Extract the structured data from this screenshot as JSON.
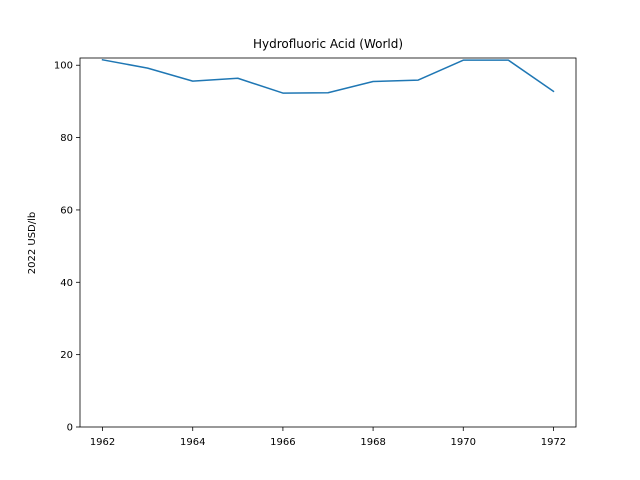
{
  "chart_data": {
    "type": "line",
    "title": "Hydrofluoric Acid (World)",
    "xlabel": "",
    "ylabel": "2022 USD/lb",
    "x": [
      1962,
      1963,
      1964,
      1965,
      1966,
      1967,
      1968,
      1969,
      1970,
      1971,
      1972
    ],
    "series": [
      {
        "values": [
          101.5,
          99.2,
          95.6,
          96.4,
          92.3,
          92.4,
          95.5,
          95.9,
          101.4,
          101.4,
          92.8
        ],
        "color": "#1f77b4"
      }
    ],
    "xlim": [
      1961.5,
      1972.5
    ],
    "ylim": [
      0,
      102
    ],
    "xticks": [
      1962,
      1964,
      1966,
      1968,
      1970,
      1972
    ],
    "yticks": [
      0,
      20,
      40,
      60,
      80,
      100
    ],
    "grid": false,
    "legend": "none"
  }
}
